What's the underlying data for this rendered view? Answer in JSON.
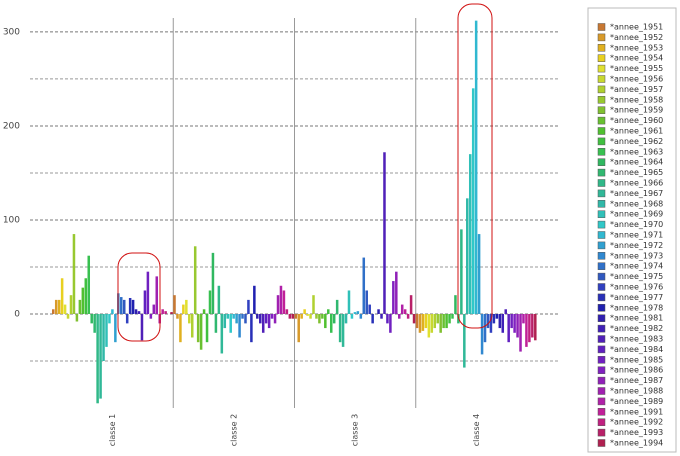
{
  "chart_data": {
    "type": "bar",
    "categories": [
      "classe 1",
      "classe 2",
      "classe 3",
      "classe 4"
    ],
    "ylim": [
      -100,
      318
    ],
    "yticks": [
      0,
      100,
      200,
      300
    ],
    "minor_yticks": [
      -50,
      50,
      150,
      250
    ],
    "grid": true,
    "legend": "right",
    "series": [
      {
        "name": "*annee_1951",
        "color": "#c87832",
        "values": [
          5,
          20,
          -5,
          -15
        ]
      },
      {
        "name": "*annee_1952",
        "color": "#d89a2a",
        "values": [
          15,
          -5,
          -30,
          -20
        ]
      },
      {
        "name": "*annee_1953",
        "color": "#e0b020",
        "values": [
          15,
          -30,
          -5,
          -18
        ]
      },
      {
        "name": "*annee_1954",
        "color": "#e8d020",
        "values": [
          38,
          10,
          5,
          -15
        ]
      },
      {
        "name": "*annee_1955",
        "color": "#e0e030",
        "values": [
          10,
          15,
          -2,
          -25
        ]
      },
      {
        "name": "*annee_1956",
        "color": "#c8d830",
        "values": [
          -5,
          -10,
          -5,
          -20
        ]
      },
      {
        "name": "*annee_1957",
        "color": "#b0d030",
        "values": [
          20,
          -25,
          20,
          -15
        ]
      },
      {
        "name": "*annee_1958",
        "color": "#98c830",
        "values": [
          85,
          72,
          -5,
          -10
        ]
      },
      {
        "name": "*annee_1959",
        "color": "#80c030",
        "values": [
          -8,
          -30,
          -10,
          -20
        ]
      },
      {
        "name": "*annee_1960",
        "color": "#68c030",
        "values": [
          15,
          -38,
          -5,
          -15
        ]
      },
      {
        "name": "*annee_1961",
        "color": "#50c030",
        "values": [
          28,
          5,
          -15,
          -15
        ]
      },
      {
        "name": "*annee_1962",
        "color": "#40c040",
        "values": [
          38,
          -30,
          5,
          -10
        ]
      },
      {
        "name": "*annee_1963",
        "color": "#38c050",
        "values": [
          62,
          25,
          -20,
          -5
        ]
      },
      {
        "name": "*annee_1964",
        "color": "#30b860",
        "values": [
          -10,
          65,
          -10,
          20
        ]
      },
      {
        "name": "*annee_1965",
        "color": "#30b870",
        "values": [
          -20,
          -20,
          15,
          -10
        ]
      },
      {
        "name": "*annee_1966",
        "color": "#30b888",
        "values": [
          -95,
          30,
          -30,
          90
        ]
      },
      {
        "name": "*annee_1967",
        "color": "#30b898",
        "values": [
          -90,
          -42,
          -35,
          -57
        ]
      },
      {
        "name": "*annee_1968",
        "color": "#30b8a8",
        "values": [
          -50,
          -15,
          -10,
          123
        ]
      },
      {
        "name": "*annee_1969",
        "color": "#30c0b8",
        "values": [
          -35,
          -5,
          25,
          170
        ]
      },
      {
        "name": "*annee_1970",
        "color": "#30c8c8",
        "values": [
          -10,
          -20,
          -5,
          240
        ]
      },
      {
        "name": "*annee_1971",
        "color": "#30b8d0",
        "values": [
          5,
          -5,
          2,
          312
        ]
      },
      {
        "name": "*annee_1972",
        "color": "#30a0d0",
        "values": [
          -30,
          -10,
          3,
          85
        ]
      },
      {
        "name": "*annee_1973",
        "color": "#3088d0",
        "values": [
          22,
          -25,
          -5,
          -43
        ]
      },
      {
        "name": "*annee_1974",
        "color": "#3070c8",
        "values": [
          18,
          -5,
          60,
          -30
        ]
      },
      {
        "name": "*annee_1975",
        "color": "#3058c0",
        "values": [
          15,
          -10,
          25,
          -15
        ]
      },
      {
        "name": "*annee_1976",
        "color": "#3040c0",
        "values": [
          -10,
          15,
          10,
          -20
        ]
      },
      {
        "name": "*annee_1977",
        "color": "#2830b8",
        "values": [
          17,
          -30,
          -10,
          -10
        ]
      },
      {
        "name": "*annee_1978",
        "color": "#2020b0",
        "values": [
          15,
          30,
          0,
          -5
        ]
      },
      {
        "name": "*annee_1981",
        "color": "#3020b0",
        "values": [
          5,
          -5,
          5,
          -15
        ]
      },
      {
        "name": "*annee_1982",
        "color": "#4020b8",
        "values": [
          3,
          -10,
          -5,
          -20
        ]
      },
      {
        "name": "*annee_1983",
        "color": "#5020b8",
        "values": [
          -28,
          -20,
          172,
          5
        ]
      },
      {
        "name": "*annee_1984",
        "color": "#6020c0",
        "values": [
          25,
          -10,
          -10,
          -30
        ]
      },
      {
        "name": "*annee_1985",
        "color": "#7020c0",
        "values": [
          45,
          -15,
          -20,
          -15
        ]
      },
      {
        "name": "*annee_1986",
        "color": "#8020c0",
        "values": [
          -5,
          -5,
          35,
          -20
        ]
      },
      {
        "name": "*annee_1987",
        "color": "#9020b8",
        "values": [
          10,
          -10,
          45,
          -25
        ]
      },
      {
        "name": "*annee_1988",
        "color": "#a020b0",
        "values": [
          40,
          20,
          -5,
          -40
        ]
      },
      {
        "name": "*annee_1989",
        "color": "#b020a8",
        "values": [
          -10,
          30,
          10,
          -10
        ]
      },
      {
        "name": "*annee_1991",
        "color": "#c02098",
        "values": [
          5,
          25,
          5,
          -35
        ]
      },
      {
        "name": "*annee_1992",
        "color": "#c02080",
        "values": [
          3,
          5,
          -5,
          -30
        ]
      },
      {
        "name": "*annee_1993",
        "color": "#b82068",
        "values": [
          0,
          -5,
          20,
          -25
        ]
      },
      {
        "name": "*annee_1994",
        "color": "#b02050",
        "values": [
          2,
          -5,
          -10,
          -28
        ]
      }
    ]
  }
}
